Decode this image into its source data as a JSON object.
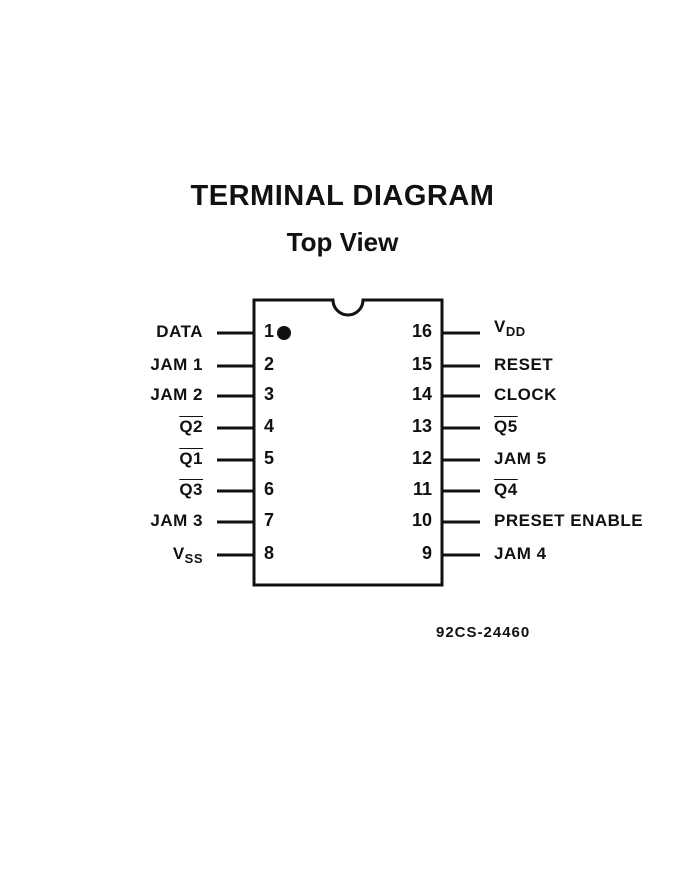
{
  "title": "TERMINAL DIAGRAM",
  "subtitle": "Top View",
  "part_code": "92CS-24460",
  "pins": {
    "left": [
      {
        "num": "1",
        "name": "DATA"
      },
      {
        "num": "2",
        "name": "JAM 1"
      },
      {
        "num": "3",
        "name": "JAM 2"
      },
      {
        "num": "4",
        "name": "Q2",
        "overline": true
      },
      {
        "num": "5",
        "name": "Q1",
        "overline": true
      },
      {
        "num": "6",
        "name": "Q3",
        "overline": true
      },
      {
        "num": "7",
        "name": "JAM 3"
      },
      {
        "num": "8",
        "name": "V",
        "sub": "SS"
      }
    ],
    "right": [
      {
        "num": "16",
        "name": "V",
        "sub": "DD"
      },
      {
        "num": "15",
        "name": "RESET"
      },
      {
        "num": "14",
        "name": "CLOCK"
      },
      {
        "num": "13",
        "name": "Q5",
        "overline": true
      },
      {
        "num": "12",
        "name": "JAM 5"
      },
      {
        "num": "11",
        "name": "Q4",
        "overline": true
      },
      {
        "num": "10",
        "name": "PRESET ENABLE"
      },
      {
        "num": "9",
        "name": "JAM 4"
      }
    ]
  }
}
